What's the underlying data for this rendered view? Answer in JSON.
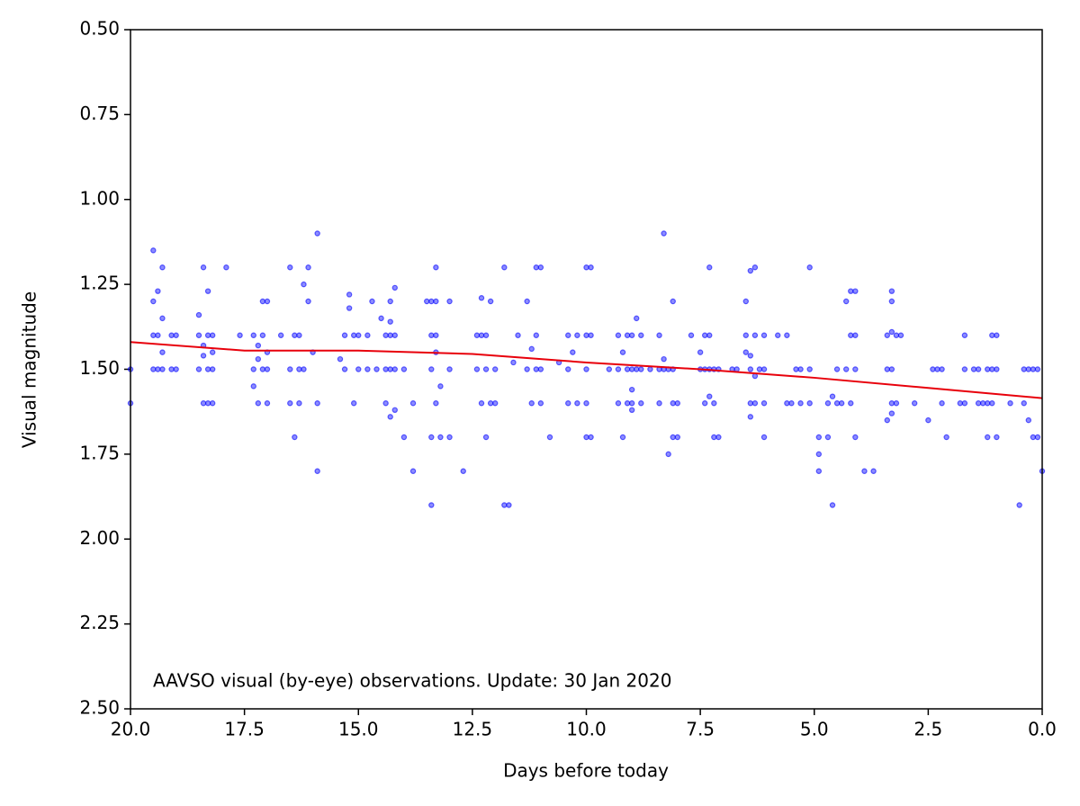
{
  "chart_data": {
    "type": "scatter",
    "xlabel": "Days before today",
    "ylabel": "Visual magnitude",
    "annotation": "AAVSO visual (by-eye) observations. Update: 30 Jan 2020",
    "xlim": [
      20,
      0
    ],
    "ylim": [
      0.5,
      2.5
    ],
    "xticks": [
      {
        "value": 20,
        "label": "20.0"
      },
      {
        "value": 17.5,
        "label": "17.5"
      },
      {
        "value": 15,
        "label": "15.0"
      },
      {
        "value": 12.5,
        "label": "12.5"
      },
      {
        "value": 10,
        "label": "10.0"
      },
      {
        "value": 7.5,
        "label": "7.5"
      },
      {
        "value": 5,
        "label": "5.0"
      },
      {
        "value": 2.5,
        "label": "2.5"
      },
      {
        "value": 0,
        "label": "0.0"
      }
    ],
    "yticks": [
      {
        "value": 0.5,
        "label": "0.50"
      },
      {
        "value": 0.75,
        "label": "0.75"
      },
      {
        "value": 1,
        "label": "1.00"
      },
      {
        "value": 1.25,
        "label": "1.25"
      },
      {
        "value": 1.5,
        "label": "1.50"
      },
      {
        "value": 1.75,
        "label": "1.75"
      },
      {
        "value": 2,
        "label": "2.00"
      },
      {
        "value": 2.25,
        "label": "2.25"
      },
      {
        "value": 2.5,
        "label": "2.50"
      }
    ],
    "color": "#0000ff",
    "x": [
      19.5,
      19.5,
      19.5,
      19.5,
      19.4,
      19.4,
      19.4,
      19.3,
      19.3,
      19.3,
      19.3,
      19.1,
      19.1,
      19.0,
      19.0,
      18.5,
      18.5,
      18.5,
      18.4,
      18.4,
      18.4,
      18.4,
      18.3,
      18.3,
      18.3,
      18.3,
      18.2,
      18.2,
      18.2,
      18.2,
      17.9,
      17.6,
      17.3,
      17.3,
      17.3,
      17.2,
      17.2,
      17.2,
      17.1,
      17.1,
      17.1,
      17.0,
      17.0,
      17.0,
      17.0,
      16.7,
      16.5,
      16.5,
      16.5,
      16.4,
      16.4,
      16.3,
      16.3,
      16.3,
      16.2,
      16.2,
      16.1,
      16.1,
      16.0,
      15.9,
      15.9,
      15.9,
      15.4,
      15.3,
      15.3,
      15.2,
      15.2,
      15.1,
      15.1,
      15.0,
      15.0,
      14.8,
      14.8,
      14.7,
      14.6,
      14.5,
      14.4,
      14.4,
      14.4,
      14.3,
      14.3,
      14.3,
      14.3,
      14.3,
      14.2,
      14.2,
      14.2,
      14.2,
      14.0,
      14.0,
      13.8,
      13.8,
      13.5,
      13.4,
      13.4,
      13.4,
      13.4,
      13.4,
      13.3,
      13.3,
      13.3,
      13.3,
      13.3,
      13.2,
      13.2,
      13.0,
      13.0,
      13.0,
      12.7,
      12.4,
      12.4,
      12.3,
      12.3,
      12.3,
      12.2,
      12.2,
      12.2,
      12.1,
      12.1,
      12.0,
      12.0,
      11.8,
      11.8,
      11.7,
      11.6,
      11.5,
      11.3,
      11.3,
      11.2,
      11.2,
      11.1,
      11.1,
      11.1,
      11.0,
      11.0,
      11.0,
      10.8,
      10.6,
      10.4,
      10.4,
      10.4,
      10.3,
      10.2,
      10.2,
      10.0,
      10.0,
      10.0,
      10.0,
      10.0,
      9.9,
      9.9,
      9.9,
      9.5,
      9.3,
      9.3,
      9.3,
      9.2,
      9.2,
      9.1,
      9.1,
      9.1,
      9.0,
      9.0,
      9.0,
      9.0,
      9.0,
      8.9,
      8.9,
      8.8,
      8.8,
      8.8,
      8.6,
      8.4,
      8.4,
      8.4,
      8.3,
      8.3,
      8.3,
      8.2,
      8.2,
      8.1,
      8.1,
      8.1,
      8.1,
      8.0,
      8.0,
      7.7,
      7.5,
      7.5,
      7.4,
      7.4,
      7.4,
      7.3,
      7.3,
      7.3,
      7.3,
      7.2,
      7.2,
      7.2,
      7.1,
      7.1,
      6.8,
      6.7,
      6.5,
      6.5,
      6.5,
      6.4,
      6.4,
      6.4,
      6.4,
      6.4,
      6.3,
      6.3,
      6.3,
      6.3,
      6.2,
      6.1,
      6.1,
      6.1,
      6.1,
      5.8,
      5.6,
      5.6,
      5.5,
      5.4,
      5.3,
      5.3,
      5.1,
      5.1,
      5.1,
      4.9,
      4.9,
      4.9,
      4.7,
      4.7,
      4.6,
      4.6,
      4.5,
      4.5,
      4.4,
      4.3,
      4.3,
      4.2,
      4.2,
      4.2,
      4.1,
      4.1,
      4.1,
      4.1,
      3.9,
      3.7,
      3.4,
      3.4,
      3.4,
      3.3,
      3.3,
      3.3,
      3.3,
      3.3,
      3.3,
      3.2,
      3.2,
      3.1,
      2.8,
      2.5,
      2.4,
      2.3,
      2.2,
      2.2,
      2.1,
      1.8,
      1.7,
      1.7,
      1.7,
      1.5,
      1.4,
      1.4,
      1.3,
      1.2,
      1.2,
      1.2,
      1.1,
      1.1,
      1.1,
      1.0,
      1.0,
      1.0,
      0.7,
      0.5,
      0.4,
      0.4,
      0.3,
      0.3,
      0.2,
      0.2,
      0.1,
      0.1,
      0.0,
      20.0,
      20.0
    ],
    "values": [
      1.15,
      1.3,
      1.4,
      1.5,
      1.27,
      1.4,
      1.5,
      1.2,
      1.35,
      1.45,
      1.5,
      1.4,
      1.5,
      1.4,
      1.5,
      1.4,
      1.34,
      1.5,
      1.2,
      1.43,
      1.6,
      1.46,
      1.27,
      1.4,
      1.5,
      1.6,
      1.4,
      1.45,
      1.5,
      1.6,
      1.2,
      1.4,
      1.4,
      1.5,
      1.55,
      1.43,
      1.6,
      1.47,
      1.3,
      1.4,
      1.5,
      1.3,
      1.45,
      1.5,
      1.6,
      1.4,
      1.2,
      1.5,
      1.6,
      1.4,
      1.7,
      1.4,
      1.5,
      1.6,
      1.25,
      1.5,
      1.2,
      1.3,
      1.45,
      1.1,
      1.6,
      1.8,
      1.47,
      1.4,
      1.5,
      1.28,
      1.32,
      1.4,
      1.6,
      1.4,
      1.5,
      1.4,
      1.5,
      1.3,
      1.5,
      1.35,
      1.4,
      1.5,
      1.6,
      1.3,
      1.36,
      1.4,
      1.5,
      1.64,
      1.26,
      1.4,
      1.5,
      1.62,
      1.5,
      1.7,
      1.6,
      1.8,
      1.3,
      1.3,
      1.4,
      1.5,
      1.7,
      1.9,
      1.2,
      1.3,
      1.4,
      1.45,
      1.6,
      1.55,
      1.7,
      1.3,
      1.5,
      1.7,
      1.8,
      1.4,
      1.5,
      1.29,
      1.4,
      1.6,
      1.4,
      1.5,
      1.7,
      1.3,
      1.6,
      1.5,
      1.6,
      1.2,
      1.9,
      1.9,
      1.48,
      1.4,
      1.3,
      1.5,
      1.44,
      1.6,
      1.2,
      1.4,
      1.5,
      1.2,
      1.5,
      1.6,
      1.7,
      1.48,
      1.4,
      1.5,
      1.6,
      1.45,
      1.4,
      1.6,
      1.2,
      1.4,
      1.5,
      1.6,
      1.7,
      1.2,
      1.4,
      1.7,
      1.5,
      1.4,
      1.5,
      1.6,
      1.45,
      1.7,
      1.4,
      1.5,
      1.6,
      1.4,
      1.5,
      1.56,
      1.6,
      1.62,
      1.35,
      1.5,
      1.4,
      1.5,
      1.6,
      1.5,
      1.4,
      1.5,
      1.6,
      1.1,
      1.47,
      1.5,
      1.5,
      1.75,
      1.3,
      1.5,
      1.6,
      1.7,
      1.6,
      1.7,
      1.4,
      1.45,
      1.5,
      1.4,
      1.5,
      1.6,
      1.2,
      1.4,
      1.5,
      1.58,
      1.5,
      1.6,
      1.7,
      1.5,
      1.7,
      1.5,
      1.5,
      1.3,
      1.4,
      1.45,
      1.21,
      1.46,
      1.5,
      1.6,
      1.64,
      1.2,
      1.4,
      1.52,
      1.6,
      1.5,
      1.4,
      1.5,
      1.6,
      1.7,
      1.4,
      1.4,
      1.6,
      1.6,
      1.5,
      1.5,
      1.6,
      1.2,
      1.5,
      1.6,
      1.7,
      1.8,
      1.75,
      1.6,
      1.7,
      1.58,
      1.9,
      1.5,
      1.6,
      1.6,
      1.3,
      1.5,
      1.27,
      1.4,
      1.6,
      1.27,
      1.4,
      1.5,
      1.7,
      1.8,
      1.8,
      1.4,
      1.5,
      1.65,
      1.27,
      1.3,
      1.39,
      1.5,
      1.6,
      1.63,
      1.4,
      1.6,
      1.4,
      1.6,
      1.65,
      1.5,
      1.5,
      1.5,
      1.6,
      1.7,
      1.6,
      1.4,
      1.5,
      1.6,
      1.5,
      1.5,
      1.6,
      1.6,
      1.5,
      1.6,
      1.7,
      1.4,
      1.5,
      1.6,
      1.4,
      1.5,
      1.7,
      1.6,
      1.9,
      1.5,
      1.6,
      1.65,
      1.5,
      1.5,
      1.7,
      1.5,
      1.7,
      1.8,
      1.5,
      1.6
    ],
    "trend_color": "#e8000b",
    "trend_x": [
      20,
      17.5,
      15,
      12.5,
      10,
      7.5,
      5,
      2.5,
      0
    ],
    "trend_values": [
      1.42,
      1.445,
      1.445,
      1.455,
      1.48,
      1.5,
      1.525,
      1.555,
      1.585
    ]
  }
}
